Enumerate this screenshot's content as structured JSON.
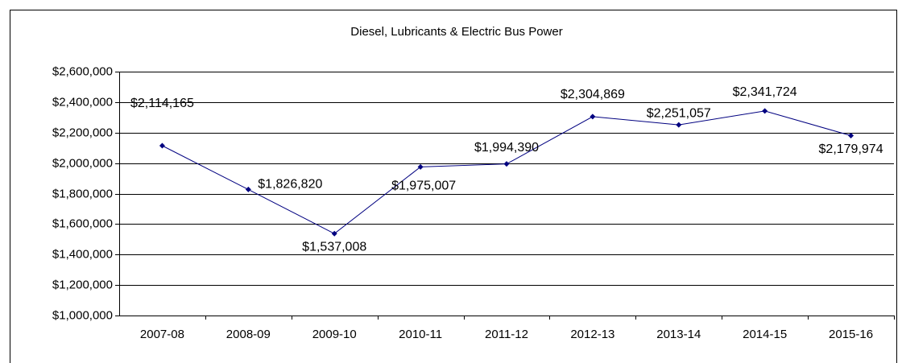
{
  "chart_data": {
    "type": "line",
    "title": "Diesel, Lubricants & Electric Bus Power",
    "categories": [
      "2007-08",
      "2008-09",
      "2009-10",
      "2010-11",
      "2011-12",
      "2012-13",
      "2013-14",
      "2014-15",
      "2015-16"
    ],
    "series": [
      {
        "name": "Diesel, Lubricants & Electric Bus Power",
        "color": "#000080",
        "values": [
          2114165,
          1826820,
          1537008,
          1975007,
          1994390,
          2304869,
          2251057,
          2341724,
          2179974
        ],
        "value_labels": [
          "$2,114,165",
          "$1,826,820",
          "$1,537,008",
          "$1,975,007",
          "$1,994,390",
          "$2,304,869",
          "$2,251,057",
          "$2,341,724",
          "$2,179,974"
        ]
      }
    ],
    "ylim": [
      1000000,
      2600000
    ],
    "yticks": [
      {
        "value": 1000000,
        "label": "$1,000,000"
      },
      {
        "value": 1200000,
        "label": "$1,200,000"
      },
      {
        "value": 1400000,
        "label": "$1,400,000"
      },
      {
        "value": 1600000,
        "label": "$1,600,000"
      },
      {
        "value": 1800000,
        "label": "$1,800,000"
      },
      {
        "value": 2000000,
        "label": "$2,000,000"
      },
      {
        "value": 2200000,
        "label": "$2,200,000"
      },
      {
        "value": 2400000,
        "label": "$2,400,000"
      },
      {
        "value": 2600000,
        "label": "$2,600,000"
      }
    ],
    "grid": true
  }
}
